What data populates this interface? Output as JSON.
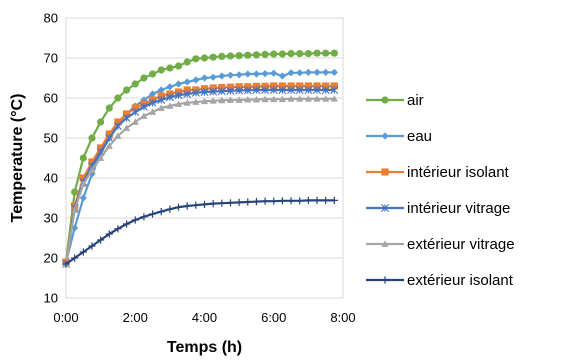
{
  "chart_data": {
    "type": "line",
    "title": "",
    "xlabel": "Temps (h)",
    "ylabel": "Temperature (°C)",
    "x_unit": "hours",
    "xlim": [
      0,
      8
    ],
    "ylim": [
      10,
      80
    ],
    "x_ticks": [
      0,
      2,
      4,
      6,
      8
    ],
    "x_tick_labels": [
      "0:00",
      "2:00",
      "4:00",
      "6:00",
      "8:00"
    ],
    "y_ticks": [
      10,
      20,
      30,
      40,
      50,
      60,
      70,
      80
    ],
    "y_tick_labels": [
      "10",
      "20",
      "30",
      "40",
      "50",
      "60",
      "70",
      "80"
    ],
    "grid": "horizontal",
    "legend_position": "right",
    "x": [
      0,
      0.25,
      0.5,
      0.75,
      1,
      1.25,
      1.5,
      1.75,
      2,
      2.25,
      2.5,
      2.75,
      3,
      3.25,
      3.5,
      3.75,
      4,
      4.25,
      4.5,
      4.75,
      5,
      5.25,
      5.5,
      5.75,
      6,
      6.25,
      6.5,
      6.75,
      7,
      7.25,
      7.5,
      7.75
    ],
    "series": [
      {
        "name": "air",
        "color": "#70ad47",
        "marker": "circle",
        "values": [
          19,
          36.5,
          45,
          50,
          54,
          57.5,
          60,
          62,
          63.5,
          65,
          66,
          67,
          67.5,
          68,
          69,
          69.8,
          70,
          70.2,
          70.4,
          70.5,
          70.6,
          70.7,
          70.8,
          70.9,
          71,
          71,
          71.1,
          71.1,
          71.1,
          71.2,
          71.2,
          71.2
        ]
      },
      {
        "name": "eau",
        "color": "#5b9bd5",
        "marker": "diamond",
        "values": [
          19,
          27.5,
          35,
          41,
          46,
          50,
          53.5,
          56,
          58,
          59.5,
          61,
          62,
          62.8,
          63.5,
          64,
          64.5,
          65,
          65.2,
          65.5,
          65.7,
          65.8,
          66,
          66,
          66.1,
          66.2,
          65.5,
          66.3,
          66.3,
          66.4,
          66.4,
          66.4,
          66.4
        ]
      },
      {
        "name": "intérieur isolant",
        "color": "#ed7d31",
        "marker": "square",
        "values": [
          19,
          33,
          40,
          44,
          47.5,
          51,
          54,
          56,
          57.5,
          58.5,
          59.5,
          60.5,
          61,
          61.5,
          62,
          62,
          62.3,
          62.5,
          62.6,
          62.7,
          62.8,
          62.8,
          62.9,
          62.9,
          63,
          63,
          63,
          63,
          63,
          63,
          63,
          63
        ]
      },
      {
        "name": "intérieur vitrage",
        "color": "#4472c4",
        "marker": "star",
        "values": [
          18.5,
          32.5,
          39,
          43,
          46.5,
          50,
          53,
          55,
          56.5,
          57.8,
          58.8,
          59.5,
          60.2,
          60.7,
          61,
          61.3,
          61.5,
          61.6,
          61.7,
          61.8,
          61.9,
          61.9,
          62,
          62,
          62,
          62,
          62,
          62,
          62,
          62,
          62,
          62
        ]
      },
      {
        "name": "extérieur vitrage",
        "color": "#a5a5a5",
        "marker": "triangle",
        "values": [
          18.5,
          32,
          38.5,
          42,
          45,
          48,
          50.5,
          52.5,
          54,
          55.5,
          56.5,
          57.5,
          58,
          58.5,
          58.8,
          59,
          59.2,
          59.3,
          59.4,
          59.5,
          59.5,
          59.6,
          59.6,
          59.7,
          59.7,
          59.7,
          59.8,
          59.8,
          59.8,
          59.8,
          59.8,
          59.8
        ]
      },
      {
        "name": "extérieur isolant",
        "color": "#264478",
        "marker": "plus",
        "values": [
          18.5,
          20,
          21.5,
          23,
          24.5,
          26,
          27.3,
          28.5,
          29.5,
          30.3,
          31,
          31.6,
          32.2,
          32.7,
          33,
          33.2,
          33.4,
          33.6,
          33.7,
          33.8,
          33.9,
          34,
          34.1,
          34.2,
          34.2,
          34.3,
          34.3,
          34.3,
          34.4,
          34.4,
          34.4,
          34.4
        ]
      }
    ]
  }
}
